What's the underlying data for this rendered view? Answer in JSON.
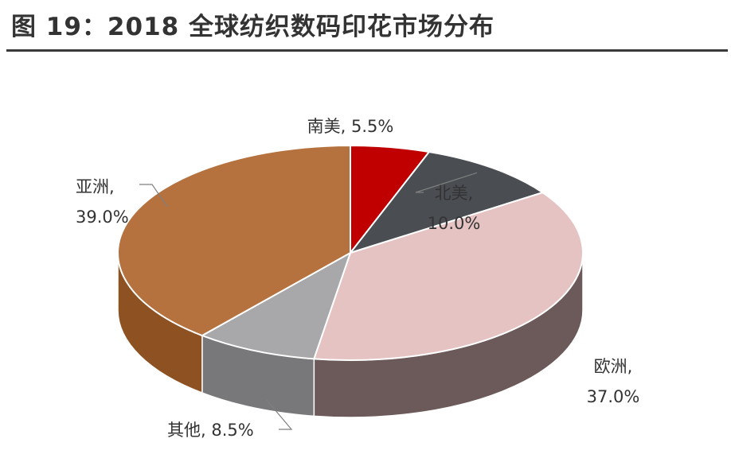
{
  "title": "图 19：2018 全球纺织数码印花市场分布",
  "chart_data": {
    "type": "pie",
    "title": "图 19：2018 全球纺织数码印花市场分布",
    "series": [
      {
        "name": "南美",
        "value": 5.5,
        "color": "#c00000",
        "side": "#8a0000",
        "label_lines": [
          "南美, 5.5%"
        ]
      },
      {
        "name": "北美",
        "value": 10.0,
        "color": "#4a4d52",
        "side": "#34363a",
        "label_lines": [
          "北美,",
          "10.0%"
        ]
      },
      {
        "name": "欧洲",
        "value": 37.0,
        "color": "#e6c3c3",
        "side": "#6b5a59",
        "label_lines": [
          "欧洲,",
          "37.0%"
        ]
      },
      {
        "name": "其他",
        "value": 8.5,
        "color": "#a8a8aa",
        "side": "#78787b",
        "label_lines": [
          "其他, 8.5%"
        ]
      },
      {
        "name": "亚洲",
        "value": 39.0,
        "color": "#b5723e",
        "side": "#8e5222",
        "label_lines": [
          "亚洲,",
          "39.0%"
        ]
      }
    ]
  }
}
